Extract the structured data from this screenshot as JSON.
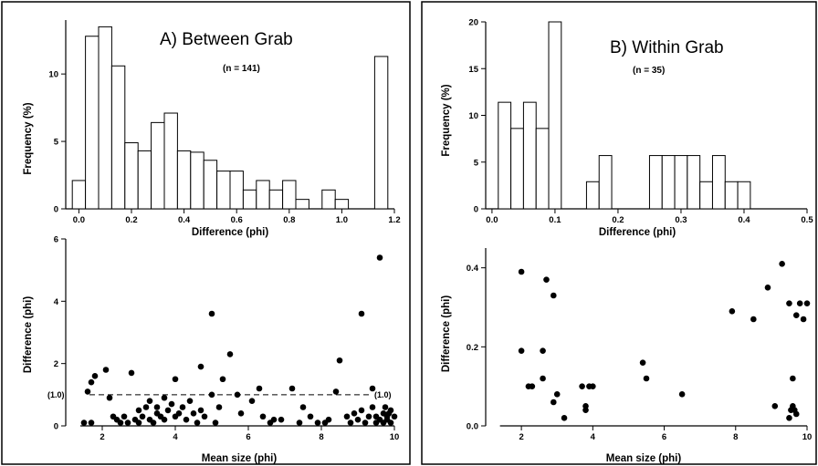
{
  "chart_data": [
    {
      "type": "bar",
      "panel": "A",
      "title": "A) Between Grab",
      "subtitle": "(n = 141)",
      "xlabel": "Difference (phi)",
      "ylabel": "Frequency (%)",
      "xlim": [
        -0.05,
        1.2
      ],
      "ylim": [
        0,
        14
      ],
      "xticks": [
        "0.0",
        "0.2",
        "0.4",
        "0.6",
        "0.8",
        "1.0",
        "1.2"
      ],
      "yticks": [
        "0",
        "5",
        "10"
      ],
      "bin_width": 0.05,
      "bins": [
        {
          "x": 0.0,
          "value": 2.1
        },
        {
          "x": 0.05,
          "value": 12.8
        },
        {
          "x": 0.1,
          "value": 13.5
        },
        {
          "x": 0.15,
          "value": 10.6
        },
        {
          "x": 0.2,
          "value": 4.9
        },
        {
          "x": 0.25,
          "value": 4.3
        },
        {
          "x": 0.3,
          "value": 6.4
        },
        {
          "x": 0.35,
          "value": 7.1
        },
        {
          "x": 0.4,
          "value": 4.3
        },
        {
          "x": 0.45,
          "value": 4.2
        },
        {
          "x": 0.5,
          "value": 3.6
        },
        {
          "x": 0.55,
          "value": 2.8
        },
        {
          "x": 0.6,
          "value": 2.8
        },
        {
          "x": 0.65,
          "value": 1.4
        },
        {
          "x": 0.7,
          "value": 2.1
        },
        {
          "x": 0.75,
          "value": 1.4
        },
        {
          "x": 0.8,
          "value": 2.1
        },
        {
          "x": 0.85,
          "value": 0.7
        },
        {
          "x": 0.95,
          "value": 1.4
        },
        {
          "x": 1.0,
          "value": 0.7
        },
        {
          "x": 1.15,
          "value": 11.3
        }
      ],
      "grid": false
    },
    {
      "type": "bar",
      "panel": "B",
      "title": "B) Within Grab",
      "subtitle": "(n = 35)",
      "xlabel": "Difference (phi)",
      "ylabel": "Frequency (%)",
      "xlim": [
        -0.01,
        0.5
      ],
      "ylim": [
        0,
        20
      ],
      "xticks": [
        "0.0",
        "0.1",
        "0.2",
        "0.3",
        "0.4",
        "0.5"
      ],
      "yticks": [
        "0",
        "5",
        "10",
        "15",
        "20"
      ],
      "bin_width": 0.02,
      "bins": [
        {
          "x": 0.02,
          "value": 11.4
        },
        {
          "x": 0.04,
          "value": 8.6
        },
        {
          "x": 0.06,
          "value": 11.4
        },
        {
          "x": 0.08,
          "value": 8.6
        },
        {
          "x": 0.1,
          "value": 20.0
        },
        {
          "x": 0.16,
          "value": 2.9
        },
        {
          "x": 0.18,
          "value": 5.7
        },
        {
          "x": 0.26,
          "value": 5.7
        },
        {
          "x": 0.28,
          "value": 5.7
        },
        {
          "x": 0.3,
          "value": 5.7
        },
        {
          "x": 0.32,
          "value": 5.7
        },
        {
          "x": 0.34,
          "value": 2.9
        },
        {
          "x": 0.36,
          "value": 5.7
        },
        {
          "x": 0.38,
          "value": 2.9
        },
        {
          "x": 0.4,
          "value": 2.9
        }
      ],
      "grid": false
    },
    {
      "type": "scatter",
      "panel": "A",
      "xlabel": "Mean size (phi)",
      "ylabel": "Difference (phi)",
      "xlim": [
        1,
        10
      ],
      "ylim": [
        0,
        6
      ],
      "xticks": [
        "2",
        "4",
        "6",
        "8",
        "10"
      ],
      "yticks": [
        "0",
        "2",
        "4",
        "6"
      ],
      "reference_line": {
        "y": 1.0,
        "labels": [
          "(1.0)",
          "(1.0)"
        ]
      },
      "points": [
        [
          1.5,
          0.1
        ],
        [
          1.7,
          0.1
        ],
        [
          1.6,
          1.1
        ],
        [
          1.7,
          1.4
        ],
        [
          1.8,
          1.6
        ],
        [
          2.1,
          1.8
        ],
        [
          2.2,
          0.9
        ],
        [
          2.3,
          0.3
        ],
        [
          2.4,
          0.2
        ],
        [
          2.5,
          0.1
        ],
        [
          2.6,
          0.3
        ],
        [
          2.7,
          0.1
        ],
        [
          2.8,
          1.7
        ],
        [
          2.9,
          0.2
        ],
        [
          3.0,
          0.1
        ],
        [
          3.0,
          0.5
        ],
        [
          3.1,
          0.3
        ],
        [
          3.2,
          0.6
        ],
        [
          3.3,
          0.8
        ],
        [
          3.3,
          0.2
        ],
        [
          3.4,
          0.1
        ],
        [
          3.5,
          0.4
        ],
        [
          3.5,
          0.6
        ],
        [
          3.6,
          0.3
        ],
        [
          3.7,
          0.2
        ],
        [
          3.7,
          0.9
        ],
        [
          3.8,
          0.5
        ],
        [
          3.9,
          0.7
        ],
        [
          4.0,
          0.3
        ],
        [
          4.0,
          1.5
        ],
        [
          4.1,
          0.4
        ],
        [
          4.2,
          0.6
        ],
        [
          4.3,
          0.2
        ],
        [
          4.4,
          0.8
        ],
        [
          4.5,
          0.4
        ],
        [
          4.6,
          0.1
        ],
        [
          4.7,
          0.5
        ],
        [
          4.7,
          1.9
        ],
        [
          4.8,
          0.3
        ],
        [
          5.0,
          3.6
        ],
        [
          5.0,
          1.0
        ],
        [
          5.1,
          0.1
        ],
        [
          5.2,
          0.6
        ],
        [
          5.3,
          1.5
        ],
        [
          5.5,
          2.3
        ],
        [
          5.7,
          1.0
        ],
        [
          5.8,
          0.4
        ],
        [
          6.1,
          0.8
        ],
        [
          6.3,
          1.2
        ],
        [
          6.4,
          0.3
        ],
        [
          6.6,
          0.1
        ],
        [
          6.7,
          0.2
        ],
        [
          6.9,
          0.2
        ],
        [
          7.2,
          1.2
        ],
        [
          7.4,
          0.1
        ],
        [
          7.5,
          0.6
        ],
        [
          7.7,
          0.3
        ],
        [
          7.9,
          0.1
        ],
        [
          8.1,
          0.1
        ],
        [
          8.2,
          0.2
        ],
        [
          8.4,
          1.1
        ],
        [
          8.5,
          2.1
        ],
        [
          8.7,
          0.3
        ],
        [
          8.8,
          0.1
        ],
        [
          8.9,
          0.4
        ],
        [
          9.0,
          0.2
        ],
        [
          9.1,
          0.5
        ],
        [
          9.1,
          3.6
        ],
        [
          9.2,
          0.1
        ],
        [
          9.3,
          0.3
        ],
        [
          9.4,
          1.2
        ],
        [
          9.4,
          0.6
        ],
        [
          9.5,
          0.1
        ],
        [
          9.5,
          0.3
        ],
        [
          9.6,
          0.2
        ],
        [
          9.6,
          5.4
        ],
        [
          9.7,
          0.4
        ],
        [
          9.7,
          0.1
        ],
        [
          9.8,
          0.3
        ],
        [
          9.8,
          0.2
        ],
        [
          9.9,
          0.5
        ],
        [
          9.9,
          0.1
        ],
        [
          10.0,
          0.3
        ],
        [
          9.75,
          0.6
        ],
        [
          9.85,
          0.4
        ]
      ],
      "grid": false
    },
    {
      "type": "scatter",
      "panel": "B",
      "xlabel": "Mean size (phi)",
      "ylabel": "Difference (phi)",
      "xlim": [
        1,
        10
      ],
      "ylim": [
        0,
        0.45
      ],
      "xticks": [
        "2",
        "4",
        "6",
        "8",
        "10"
      ],
      "yticks": [
        "0.0",
        "0.2",
        "0.4"
      ],
      "points": [
        [
          2.0,
          0.39
        ],
        [
          2.0,
          0.19
        ],
        [
          2.2,
          0.1
        ],
        [
          2.3,
          0.1
        ],
        [
          2.6,
          0.19
        ],
        [
          2.6,
          0.12
        ],
        [
          2.7,
          0.37
        ],
        [
          2.9,
          0.33
        ],
        [
          2.9,
          0.06
        ],
        [
          3.0,
          0.08
        ],
        [
          3.2,
          0.02
        ],
        [
          3.7,
          0.1
        ],
        [
          3.8,
          0.05
        ],
        [
          3.8,
          0.04
        ],
        [
          3.9,
          0.1
        ],
        [
          4.0,
          0.1
        ],
        [
          5.4,
          0.16
        ],
        [
          5.5,
          0.12
        ],
        [
          6.5,
          0.08
        ],
        [
          7.9,
          0.29
        ],
        [
          8.5,
          0.27
        ],
        [
          8.9,
          0.35
        ],
        [
          9.1,
          0.05
        ],
        [
          9.3,
          0.41
        ],
        [
          9.5,
          0.31
        ],
        [
          9.5,
          0.02
        ],
        [
          9.6,
          0.12
        ],
        [
          9.6,
          0.05
        ],
        [
          9.7,
          0.03
        ],
        [
          9.7,
          0.28
        ],
        [
          9.8,
          0.31
        ],
        [
          9.9,
          0.27
        ],
        [
          10.0,
          0.31
        ],
        [
          9.65,
          0.04
        ],
        [
          9.55,
          0.04
        ]
      ],
      "grid": false
    }
  ]
}
